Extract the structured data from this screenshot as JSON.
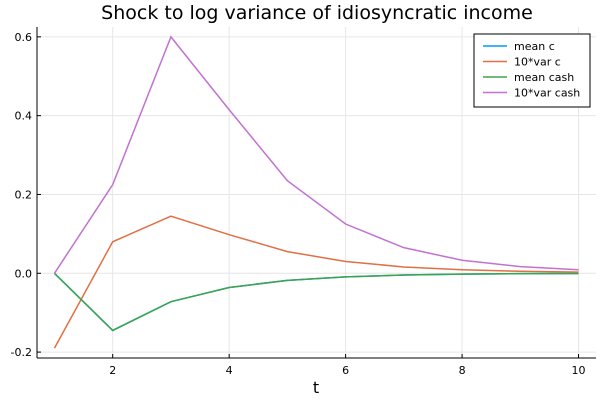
{
  "chart_data": {
    "type": "line",
    "title": "Shock to log variance of idiosyncratic income",
    "xlabel": "t",
    "ylabel": "",
    "xlim": [
      0.7,
      10.3
    ],
    "ylim": [
      -0.215,
      0.625
    ],
    "xticks": [
      2,
      4,
      6,
      8,
      10
    ],
    "yticks": [
      -0.2,
      0.0,
      0.2,
      0.4,
      0.6
    ],
    "ytick_labels": [
      "-0.2",
      "0.0",
      "0.2",
      "0.4",
      "0.6"
    ],
    "grid": true,
    "legend_position": "top-right",
    "x": [
      1,
      2,
      3,
      4,
      5,
      6,
      7,
      8,
      9,
      10
    ],
    "series": [
      {
        "name": "mean c",
        "color": "#009AFA",
        "values": [
          0.0,
          -0.145,
          -0.072,
          -0.036,
          -0.018,
          -0.009,
          -0.0045,
          -0.002,
          -0.001,
          -0.0005
        ]
      },
      {
        "name": "10*var c",
        "color": "#E26F46",
        "values": [
          -0.19,
          0.08,
          0.145,
          0.098,
          0.055,
          0.03,
          0.016,
          0.009,
          0.005,
          0.003
        ]
      },
      {
        "name": "mean cash",
        "color": "#3DA44D",
        "values": [
          0.0,
          -0.145,
          -0.072,
          -0.036,
          -0.018,
          -0.009,
          -0.0045,
          -0.002,
          -0.001,
          -0.0005
        ]
      },
      {
        "name": "10*var cash",
        "color": "#C271D2",
        "values": [
          0.0,
          0.225,
          0.6,
          0.415,
          0.235,
          0.125,
          0.065,
          0.033,
          0.017,
          0.009
        ]
      }
    ]
  }
}
